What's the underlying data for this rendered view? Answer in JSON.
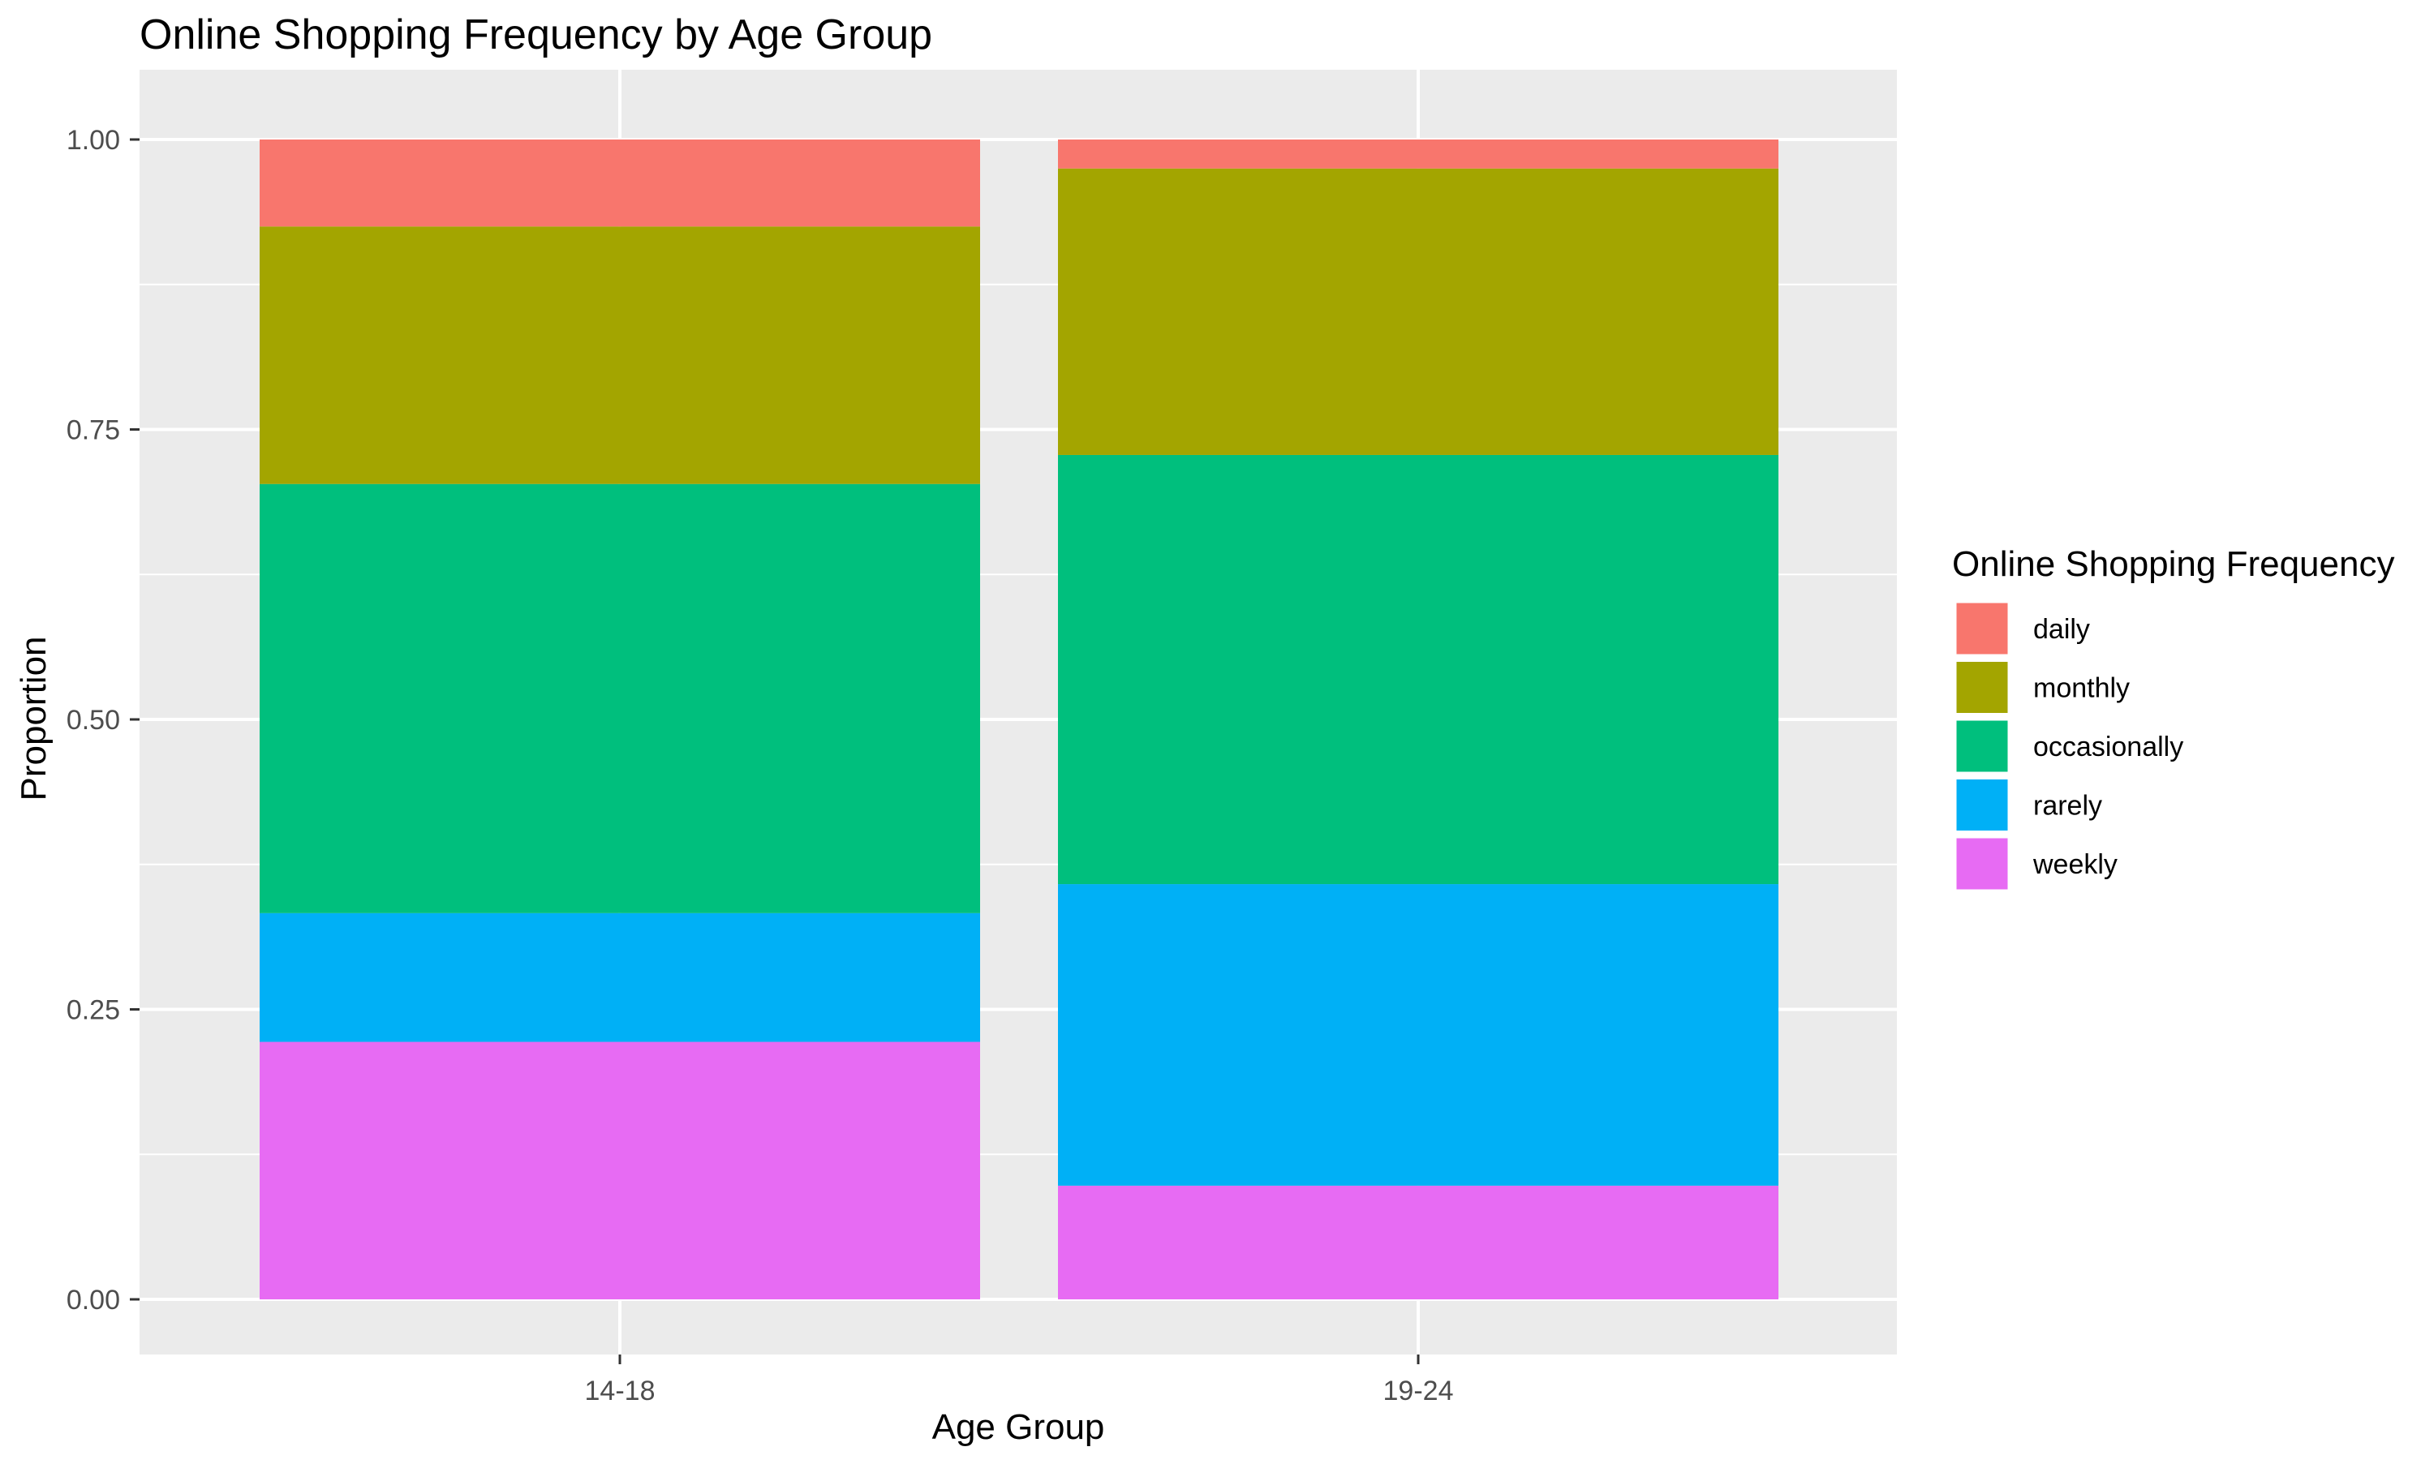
{
  "chart_data": {
    "type": "bar",
    "stacked": true,
    "title": "Online Shopping Frequency by Age Group",
    "xlabel": "Age Group",
    "ylabel": "Proportion",
    "categories": [
      "14-18",
      "19-24"
    ],
    "ylim": [
      0,
      1
    ],
    "yticks": [
      0.0,
      0.25,
      0.5,
      0.75,
      1.0
    ],
    "ytick_labels": [
      "0.00",
      "0.25",
      "0.50",
      "0.75",
      "1.00"
    ],
    "grid": true,
    "legend": {
      "title": "Online Shopping Frequency",
      "placement": "right"
    },
    "series": [
      {
        "name": "weekly",
        "color": "#E76BF3",
        "values": [
          0.222,
          0.098
        ]
      },
      {
        "name": "rarely",
        "color": "#00B0F6",
        "values": [
          0.111,
          0.26
        ]
      },
      {
        "name": "occasionally",
        "color": "#00BF7D",
        "values": [
          0.37,
          0.37
        ]
      },
      {
        "name": "monthly",
        "color": "#A3A500",
        "values": [
          0.222,
          0.247
        ]
      },
      {
        "name": "daily",
        "color": "#F8766D",
        "values": [
          0.075,
          0.025
        ]
      }
    ],
    "legend_order": [
      "daily",
      "monthly",
      "occasionally",
      "rarely",
      "weekly"
    ]
  },
  "theme": {
    "panel_background": "#EBEBEB",
    "grid_color": "#FFFFFF",
    "tick_color": "#333333"
  }
}
